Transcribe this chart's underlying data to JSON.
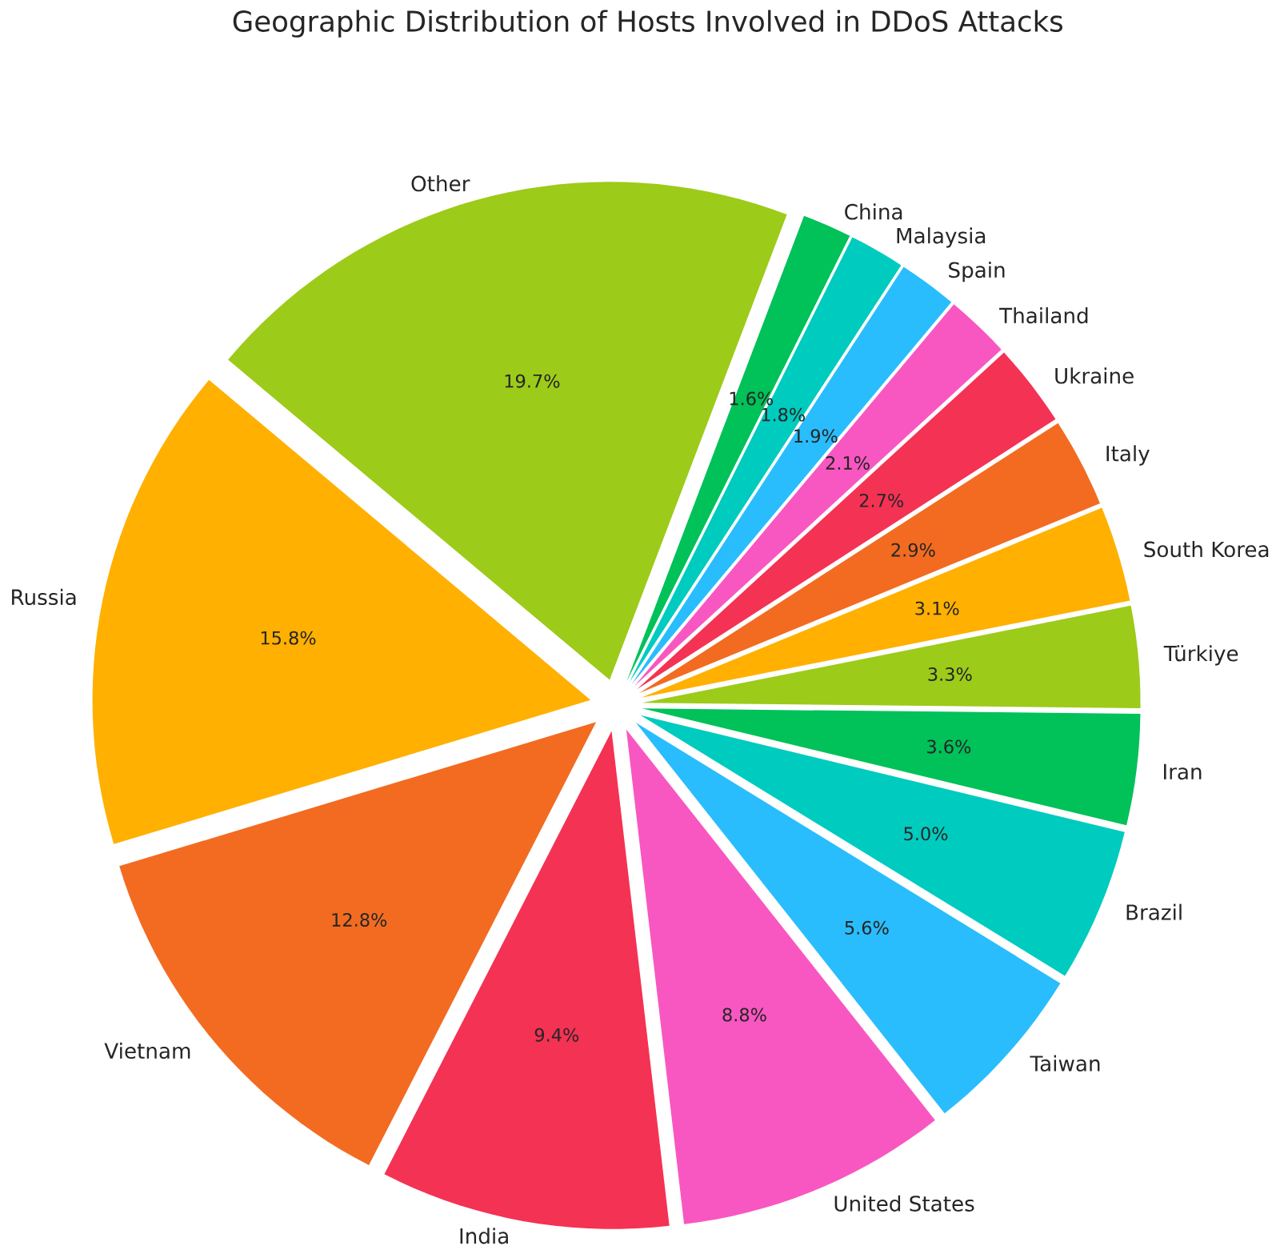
{
  "chart_data": {
    "type": "pie",
    "title": "Geographic Distribution of Hosts Involved in DDoS Attacks",
    "categories": [
      "Russia",
      "Vietnam",
      "India",
      "United States",
      "Taiwan",
      "Brazil",
      "Iran",
      "Türkiye",
      "South Korea",
      "Italy",
      "Ukraine",
      "Thailand",
      "Spain",
      "Malaysia",
      "China",
      "Other"
    ],
    "values": [
      15.8,
      12.8,
      9.4,
      8.8,
      5.6,
      5.0,
      3.6,
      3.3,
      3.1,
      2.9,
      2.7,
      2.1,
      1.9,
      1.8,
      1.6,
      19.7
    ],
    "value_labels": [
      "15.8%",
      "12.8%",
      "9.4%",
      "8.8%",
      "5.6%",
      "5.0%",
      "3.6%",
      "3.3%",
      "3.1%",
      "2.9%",
      "2.7%",
      "2.1%",
      "1.9%",
      "1.8%",
      "1.6%",
      "19.7%"
    ],
    "colors": [
      "#ffb000",
      "#f26b21",
      "#f43254",
      "#f857c1",
      "#29bdfd",
      "#00cbbf",
      "#01c159",
      "#9ccb19",
      "#ffb000",
      "#f26b21",
      "#f43254",
      "#f857c1",
      "#29bdfd",
      "#00cbbf",
      "#01c159",
      "#9ccb19"
    ]
  }
}
